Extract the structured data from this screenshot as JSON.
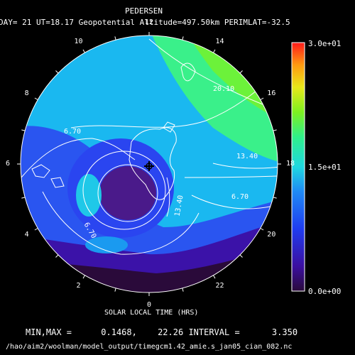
{
  "header": {
    "title": "PEDERSEN",
    "subtitle": "DAY= 21 UT=18.17 Geopotential Altitude=497.50km PERIMLAT=-32.5"
  },
  "hour_labels": [
    "12",
    "14",
    "16",
    "18",
    "20",
    "22",
    "0",
    "2",
    "4",
    "6",
    "8",
    "10"
  ],
  "contour_labels": [
    "20.10",
    "6.70",
    "13.40",
    "6.70",
    "13.40",
    "6.70"
  ],
  "colorbar": {
    "max_label": "3.0e+01",
    "mid_label": "1.5e+01",
    "min_label": "0.0e+00"
  },
  "footer": {
    "axis_title": "SOLAR LOCAL TIME (HRS)",
    "stats_label": "MIN,MAX =",
    "min_value": "0.1468,",
    "max_value": "22.26",
    "interval_label": "INTERVAL =",
    "interval_value": "3.350",
    "file_path": "/hao/aim2/woolman/model_output/timegcm1.42_amie.s_jan05_cian_082.nc"
  },
  "colors": {
    "background": "#000000",
    "contour": "#ffffff",
    "colormap": [
      "#2a0a3a",
      "#3b0fa0",
      "#1f3cf0",
      "#1f8af5",
      "#1fd8e0",
      "#2ff08a",
      "#7df020",
      "#e8e81a",
      "#ff9a10",
      "#ff1a1a"
    ]
  }
}
